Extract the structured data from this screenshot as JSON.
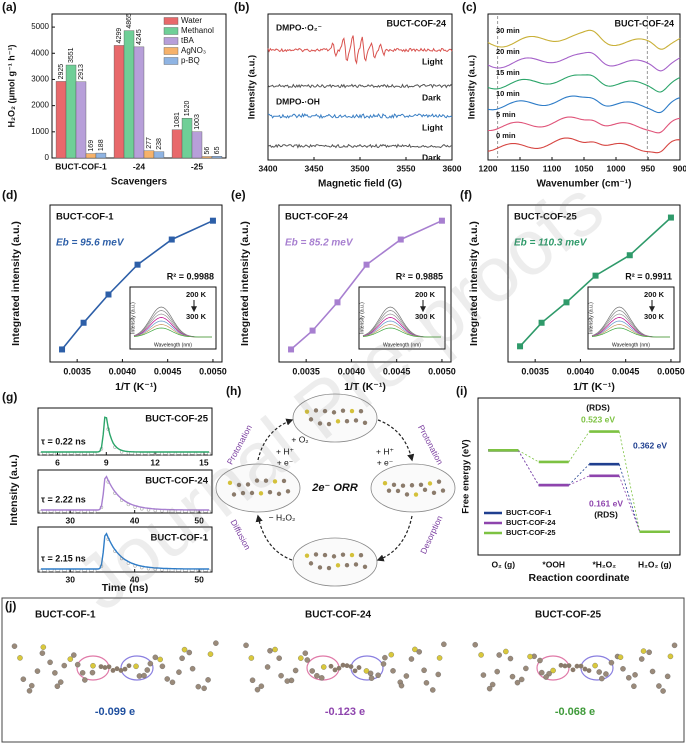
{
  "watermark": "Journal Pre-proofs",
  "chart_data": [
    {
      "type": "bar",
      "label": "(a)",
      "xlabel": "Scavengers",
      "ylabel": "H₂O₂ (μmol g⁻¹ h⁻¹)",
      "categories": [
        "BUCT-COF-1",
        "-24",
        "-25"
      ],
      "series": [
        {
          "name": "Water",
          "color": "#e8696b",
          "values": [
            2925,
            4299,
            1081
          ]
        },
        {
          "name": "Methanol",
          "color": "#6fcf97",
          "values": [
            3551,
            4865,
            1520
          ]
        },
        {
          "name": "tBA",
          "color": "#b79fd9",
          "values": [
            2913,
            4245,
            1003
          ]
        },
        {
          "name": "AgNO₃",
          "color": "#f6b26b",
          "values": [
            169,
            277,
            56
          ]
        },
        {
          "name": "p-BQ",
          "color": "#8fb4e3",
          "values": [
            188,
            238,
            65
          ]
        }
      ],
      "ylim": [
        0,
        5500
      ],
      "yticks": [
        0,
        1000,
        2000,
        3000,
        4000,
        5000
      ]
    },
    {
      "type": "epr",
      "label": "(b)",
      "title": "BUCT-COF-24",
      "xlabel": "Magnetic field (G)",
      "ylabel": "Intensity (a.u.)",
      "probes": [
        "DMPO-·O₂⁻",
        "DMPO-·OH"
      ],
      "traces": [
        {
          "label": "Light",
          "color": "#d9534f"
        },
        {
          "label": "Dark",
          "color": "#555555"
        },
        {
          "label": "Light",
          "color": "#3a7fc4"
        },
        {
          "label": "Dark",
          "color": "#555555"
        }
      ],
      "xlim": [
        3400,
        3600
      ],
      "xticks": [
        3400,
        3450,
        3500,
        3550,
        3600
      ]
    },
    {
      "type": "ftir",
      "label": "(c)",
      "title": "BUCT-COF-24",
      "xlabel": "Wavenumber (cm⁻¹)",
      "ylabel": "Intensity (a.u.)",
      "traces": [
        {
          "label": "30 min",
          "color": "#c9b037"
        },
        {
          "label": "20 min",
          "color": "#a561c9"
        },
        {
          "label": "15 min",
          "color": "#2ca56a"
        },
        {
          "label": "10 min",
          "color": "#2f7dc8"
        },
        {
          "label": "5 min",
          "color": "#e0557a"
        },
        {
          "label": "0 min",
          "color": "#d64541"
        }
      ],
      "xlim": [
        1200,
        900
      ],
      "xticks": [
        1200,
        1150,
        1100,
        1050,
        1000,
        950,
        900
      ]
    },
    {
      "type": "scatter",
      "label": "(d)",
      "title": "BUCT-COF-1",
      "fit_label": "Eb = 95.6 meV",
      "r2_label": "R² = 0.9988",
      "color": "#2d5fa8",
      "xlabel": "1/T (K⁻¹)",
      "ylabel": "Integrated intensity (a.u.)",
      "x": [
        0.003333,
        0.003571,
        0.003846,
        0.004167,
        0.004545,
        0.005
      ],
      "values": [
        0.08,
        0.25,
        0.43,
        0.62,
        0.78,
        0.9
      ],
      "xlim": [
        0.0032,
        0.0051
      ],
      "xticks": [
        0.0035,
        {
          "value": 0.004,
          "label": "0.0040"
        },
        0.0045,
        {
          "value": 0.005,
          "label": "0.0050"
        }
      ],
      "ylim": [
        0,
        1
      ],
      "inset": {
        "top_label": "200 K",
        "bottom_label": "300 K",
        "xlabel": "Wavelength (nm)",
        "ylabel": "Intensity (a.u.)"
      }
    },
    {
      "type": "scatter",
      "label": "(e)",
      "title": "BUCT-COF-24",
      "fit_label": "Eb = 85.2 meV",
      "r2_label": "R² = 0.9885",
      "color": "#a77fd0",
      "xlabel": "1/T (K⁻¹)",
      "ylabel": "Integrated intensity (a.u.)",
      "x": [
        0.003333,
        0.003571,
        0.003846,
        0.004167,
        0.004545,
        0.005
      ],
      "values": [
        0.08,
        0.2,
        0.38,
        0.62,
        0.78,
        0.9
      ],
      "xlim": [
        0.0032,
        0.0051
      ],
      "xticks": [
        0.0035,
        {
          "value": 0.004,
          "label": "0.0040"
        },
        0.0045,
        {
          "value": 0.005,
          "label": "0.0050"
        }
      ],
      "ylim": [
        0,
        1
      ],
      "inset": {
        "top_label": "200 K",
        "bottom_label": "300 K",
        "xlabel": "Wavelength (nm)",
        "ylabel": "Intensity (a.u.)"
      }
    },
    {
      "type": "scatter",
      "label": "(f)",
      "title": "BUCT-COF-25",
      "fit_label": "Eb = 110.3 meV",
      "r2_label": "R² = 0.9911",
      "color": "#2f9a6a",
      "xlabel": "1/T (K⁻¹)",
      "ylabel": "Integrated intensity (a.u.)",
      "x": [
        0.003333,
        0.003571,
        0.003846,
        0.004167,
        0.004545,
        0.005
      ],
      "values": [
        0.1,
        0.25,
        0.38,
        0.55,
        0.68,
        0.92
      ],
      "xlim": [
        0.0032,
        0.0051
      ],
      "xticks": [
        0.0035,
        {
          "value": 0.004,
          "label": "0.0040"
        },
        0.0045,
        {
          "value": 0.005,
          "label": "0.0050"
        }
      ],
      "ylim": [
        0,
        1
      ],
      "inset": {
        "top_label": "200 K",
        "bottom_label": "300 K",
        "xlabel": "Wavelength (nm)",
        "ylabel": "Intensity (a.u.)"
      }
    },
    {
      "type": "decay",
      "label": "(g)",
      "xlabel": "Time (ns)",
      "ylabel": "Intensity (a.u.)",
      "panels": [
        {
          "title": "BUCT-COF-25",
          "tau_label": "τ = 0.22 ns",
          "color": "#2ca56a",
          "xlim": [
            4.8,
            15.5
          ],
          "xticks": [
            6,
            9,
            12,
            15
          ]
        },
        {
          "title": "BUCT-COF-24",
          "tau_label": "τ = 2.22 ns",
          "color": "#a77fd0",
          "xlim": [
            25,
            52
          ],
          "xticks": [
            30,
            40,
            50
          ]
        },
        {
          "title": "BUCT-COF-1",
          "tau_label": "τ = 2.15 ns",
          "color": "#2f7dc8",
          "xlim": [
            25,
            52
          ],
          "xticks": [
            30,
            40,
            50
          ]
        }
      ]
    },
    {
      "type": "energy",
      "label": "(i)",
      "xlabel": "Reaction coordinate",
      "ylabel": "Free energy (eV)",
      "categories": [
        "O₂ (g)",
        "*OOH",
        "*H₂O₂",
        "H₂O₂ (g)"
      ],
      "series": [
        {
          "name": "BUCT-COF-1",
          "color": "#1f3f8f",
          "values": [
            0,
            -0.6,
            -0.238,
            -1.4
          ]
        },
        {
          "name": "BUCT-COF-24",
          "color": "#8e44ad",
          "values": [
            0,
            -0.6,
            -0.439,
            -1.4
          ]
        },
        {
          "name": "BUCT-COF-25",
          "color": "#7dc242",
          "values": [
            0,
            -0.2,
            0.323,
            -1.4
          ]
        }
      ],
      "ylim": [
        -1.8,
        0.9
      ],
      "annotations": [
        "(RDS)",
        "0.523 eV",
        "0.362 eV",
        "0.161 eV",
        "(RDS)"
      ]
    }
  ],
  "diagram": {
    "label": "(h)",
    "center": "2e⁻ ORR",
    "steps": [
      {
        "name": "Protonation",
        "reactants": [
          "+ O₂",
          "+ H⁺",
          "+ e⁻"
        ]
      },
      {
        "name": "Protonation",
        "reactants": [
          "+ H⁺",
          "+ e⁻"
        ]
      },
      {
        "name": "Desorption"
      },
      {
        "name": "Diffusion",
        "reactants": [
          "− H₂O₂"
        ]
      }
    ]
  },
  "structures": {
    "label": "(j)",
    "items": [
      {
        "name": "BUCT-COF-1",
        "charge": "-0.099 e",
        "color": "#1f4f9f"
      },
      {
        "name": "BUCT-COF-24",
        "charge": "-0.123 e",
        "color": "#8e44ad"
      },
      {
        "name": "BUCT-COF-25",
        "charge": "-0.068 e",
        "color": "#3f9a3a"
      }
    ]
  }
}
